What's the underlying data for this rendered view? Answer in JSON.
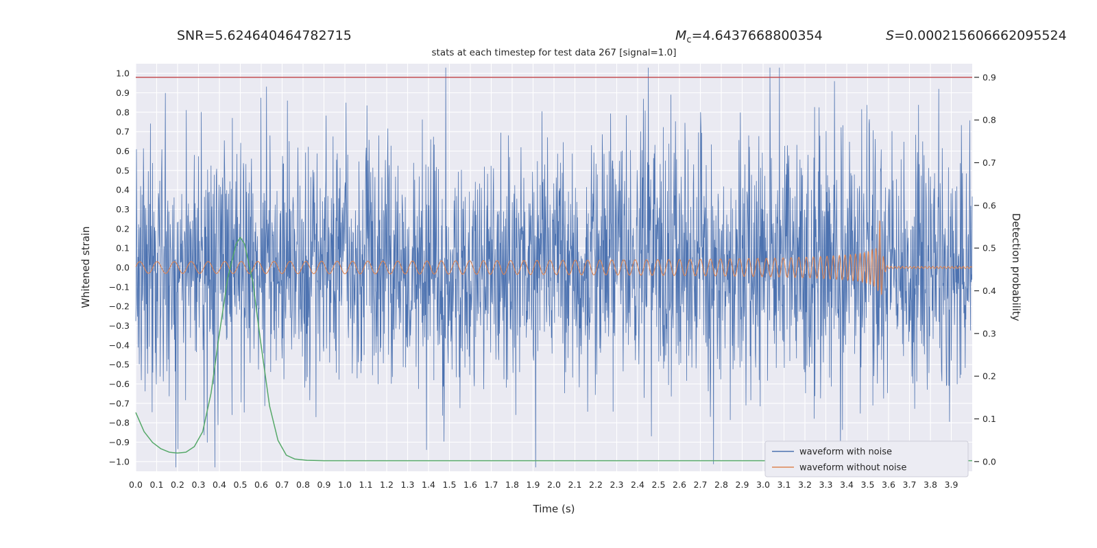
{
  "annotations": {
    "snr": "SNR=5.624640464782715",
    "mc_main": "M",
    "mc_sub": "c",
    "mc_rest": "=4.6437668800354",
    "s_main": "S",
    "s_rest": "=0.000215606662095524"
  },
  "chart_data": {
    "type": "line",
    "title": "stats at each timestep for test data 267 [signal=1.0]",
    "xlabel": "Time (s)",
    "ylabel_left": "Whitened strain",
    "ylabel_right": "Detection probability",
    "xlim": [
      0.0,
      4.0
    ],
    "ylim_left": [
      -1.05,
      1.05
    ],
    "grid": true,
    "plot_bg": "#eaeaf2",
    "grid_color": "#ffffff",
    "right_axis_map": {
      "p0_strain": -1.0,
      "p09_strain": 0.98
    },
    "x_ticks": {
      "labels": [
        "0.0",
        "0.1",
        "0.2",
        "0.3",
        "0.4",
        "0.5",
        "0.6",
        "0.7",
        "0.8",
        "0.9",
        "1.0",
        "1.1",
        "1.2",
        "1.3",
        "1.4",
        "1.5",
        "1.6",
        "1.7",
        "1.8",
        "1.9",
        "2.0",
        "2.1",
        "2.2",
        "2.3",
        "2.4",
        "2.5",
        "2.6",
        "2.7",
        "2.8",
        "2.9",
        "3.0",
        "3.1",
        "3.2",
        "3.3",
        "3.4",
        "3.5",
        "3.6",
        "3.7",
        "3.8",
        "3.9"
      ],
      "values": [
        0.0,
        0.1,
        0.2,
        0.3,
        0.4,
        0.5,
        0.6,
        0.7,
        0.8,
        0.9,
        1.0,
        1.1,
        1.2,
        1.3,
        1.4,
        1.5,
        1.6,
        1.7,
        1.8,
        1.9,
        2.0,
        2.1,
        2.2,
        2.3,
        2.4,
        2.5,
        2.6,
        2.7,
        2.8,
        2.9,
        3.0,
        3.1,
        3.2,
        3.3,
        3.4,
        3.5,
        3.6,
        3.7,
        3.8,
        3.9
      ]
    },
    "y_ticks_left": {
      "labels": [
        "1.0",
        "0.9",
        "0.8",
        "0.7",
        "0.6",
        "0.5",
        "0.4",
        "0.3",
        "0.2",
        "0.1",
        "0.0",
        "−0.1",
        "−0.2",
        "−0.3",
        "−0.4",
        "−0.5",
        "−0.6",
        "−0.7",
        "−0.8",
        "−0.9",
        "−1.0"
      ],
      "values": [
        1.0,
        0.9,
        0.8,
        0.7,
        0.6,
        0.5,
        0.4,
        0.3,
        0.2,
        0.1,
        0.0,
        -0.1,
        -0.2,
        -0.3,
        -0.4,
        -0.5,
        -0.6,
        -0.7,
        -0.8,
        -0.9,
        -1.0
      ]
    },
    "y_ticks_right": {
      "labels": [
        "0.9",
        "0.8",
        "0.7",
        "0.6",
        "0.5",
        "0.4",
        "0.3",
        "0.2",
        "0.1",
        "0.0"
      ],
      "values": [
        0.9,
        0.8,
        0.7,
        0.6,
        0.5,
        0.4,
        0.3,
        0.2,
        0.1,
        0.0
      ]
    },
    "series": [
      {
        "name": "waveform with noise",
        "kind": "noise",
        "color": "#4c72b0",
        "seed": 267,
        "n": 2400,
        "std": 0.32,
        "clip": 1.03
      },
      {
        "name": "waveform without noise",
        "kind": "chirp",
        "color": "#dd8452",
        "f0": 12,
        "t_merger": 3.56,
        "a0": 0.03,
        "peak_amp": 0.27,
        "post_amp": 0.005,
        "f_cap": 55,
        "a_cap": 0.1
      },
      {
        "name": "detection probability",
        "kind": "prob",
        "color": "#55a868",
        "axis": "right",
        "points": [
          [
            0.0,
            0.115
          ],
          [
            0.04,
            0.07
          ],
          [
            0.08,
            0.045
          ],
          [
            0.12,
            0.03
          ],
          [
            0.16,
            0.022
          ],
          [
            0.2,
            0.02
          ],
          [
            0.24,
            0.022
          ],
          [
            0.28,
            0.035
          ],
          [
            0.32,
            0.07
          ],
          [
            0.36,
            0.16
          ],
          [
            0.4,
            0.3
          ],
          [
            0.44,
            0.43
          ],
          [
            0.48,
            0.51
          ],
          [
            0.5,
            0.525
          ],
          [
            0.52,
            0.51
          ],
          [
            0.56,
            0.42
          ],
          [
            0.6,
            0.27
          ],
          [
            0.64,
            0.13
          ],
          [
            0.68,
            0.05
          ],
          [
            0.72,
            0.015
          ],
          [
            0.76,
            0.006
          ],
          [
            0.82,
            0.003
          ],
          [
            0.9,
            0.002
          ],
          [
            4.0,
            0.002
          ]
        ]
      },
      {
        "name": "detection threshold",
        "kind": "hline",
        "color": "#c44e52",
        "axis": "right",
        "value": 0.9
      }
    ],
    "legend": {
      "position": "lower right",
      "items": [
        {
          "label": "waveform with noise",
          "color": "#4c72b0"
        },
        {
          "label": "waveform without noise",
          "color": "#dd8452"
        }
      ]
    }
  }
}
